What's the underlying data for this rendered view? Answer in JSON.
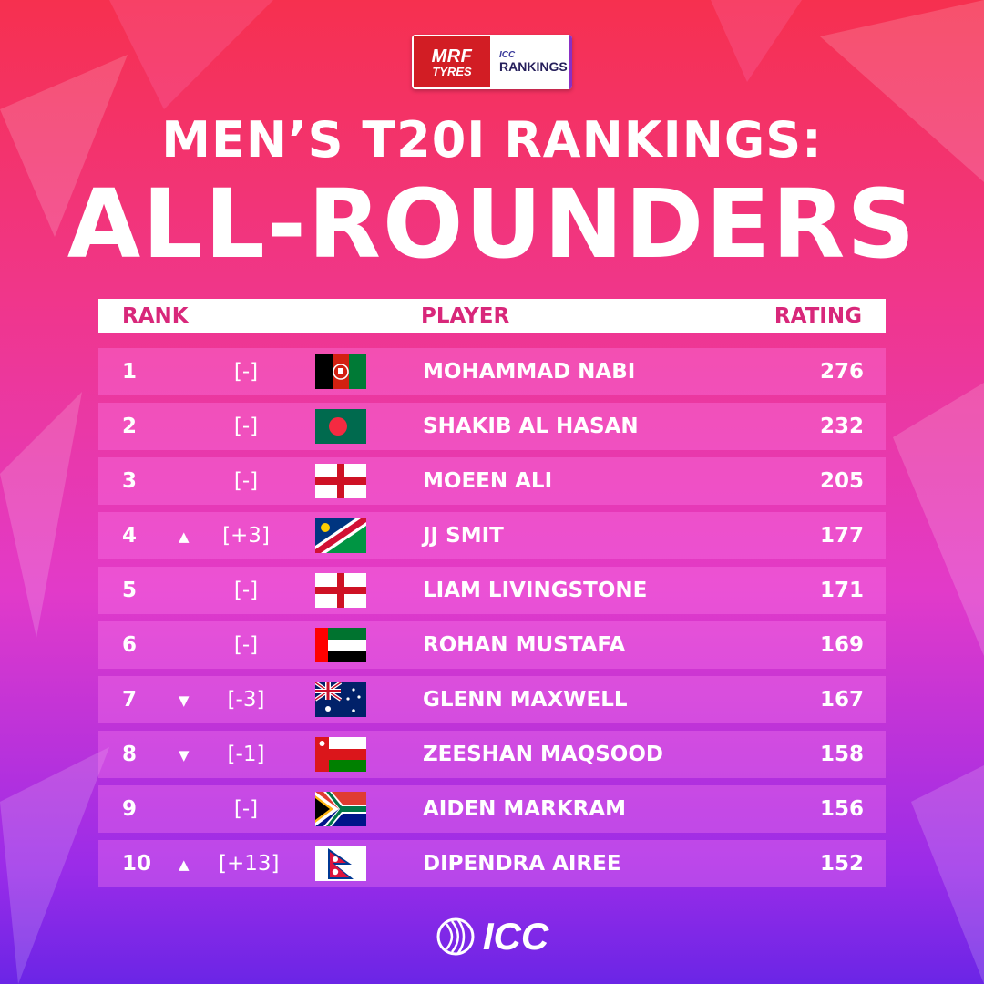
{
  "sponsor": {
    "brand_top": "MRF",
    "brand_bottom": "TYRES",
    "icc_small": "ICC",
    "rankings_word": "RANKINGS"
  },
  "title": {
    "line1": "MEN’S T20I RANKINGS:",
    "line2": "ALL-ROUNDERS"
  },
  "header": {
    "rank": "RANK",
    "player": "PLAYER",
    "rating": "RATING"
  },
  "rows": [
    {
      "rank": "1",
      "arrow": "",
      "change": "[-]",
      "flag": "afghanistan-flag",
      "player": "MOHAMMAD NABI",
      "rating": "276"
    },
    {
      "rank": "2",
      "arrow": "",
      "change": "[-]",
      "flag": "bangladesh-flag",
      "player": "SHAKIB AL HASAN",
      "rating": "232"
    },
    {
      "rank": "3",
      "arrow": "",
      "change": "[-]",
      "flag": "england-flag",
      "player": "MOEEN ALI",
      "rating": "205"
    },
    {
      "rank": "4",
      "arrow": "▲",
      "change": "[+3]",
      "flag": "namibia-flag",
      "player": "JJ SMIT",
      "rating": "177"
    },
    {
      "rank": "5",
      "arrow": "",
      "change": "[-]",
      "flag": "england-flag",
      "player": "LIAM LIVINGSTONE",
      "rating": "171"
    },
    {
      "rank": "6",
      "arrow": "",
      "change": "[-]",
      "flag": "uae-flag",
      "player": "ROHAN MUSTAFA",
      "rating": "169"
    },
    {
      "rank": "7",
      "arrow": "▼",
      "change": "[-3]",
      "flag": "australia-flag",
      "player": "GLENN MAXWELL",
      "rating": "167"
    },
    {
      "rank": "8",
      "arrow": "▼",
      "change": "[-1]",
      "flag": "oman-flag",
      "player": "ZEESHAN MAQSOOD",
      "rating": "158"
    },
    {
      "rank": "9",
      "arrow": "",
      "change": "[-]",
      "flag": "south-africa-flag",
      "player": "AIDEN MARKRAM",
      "rating": "156"
    },
    {
      "rank": "10",
      "arrow": "▲",
      "change": "[+13]",
      "flag": "nepal-flag",
      "player": "DIPENDRA AIREE",
      "rating": "152"
    }
  ],
  "footer": {
    "logo_text": "ICC"
  }
}
